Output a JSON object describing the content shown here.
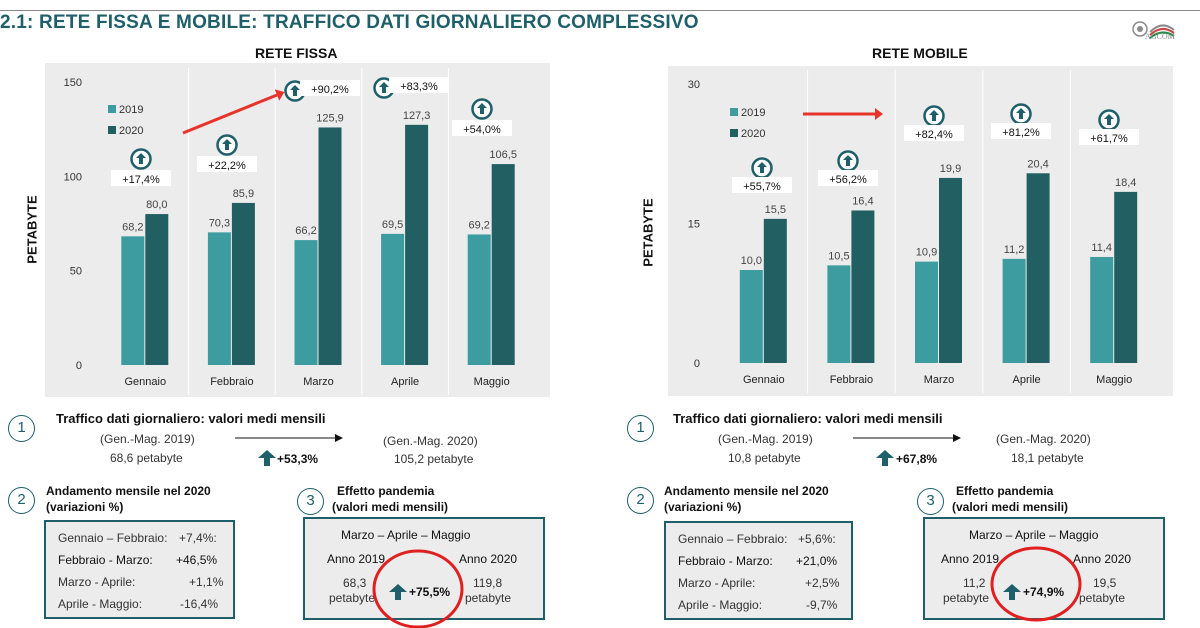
{
  "page_title": "2.1: RETE FISSA E MOBILE: TRAFFICO DATI GIORNALIERO COMPLESSIVO",
  "logo_text": "AGCOM",
  "colors": {
    "c2019": "#3c9ca0",
    "c2020": "#225f63",
    "accent": "#1f5f6a",
    "arrow": "#e8332a",
    "circle": "#e02020"
  },
  "chart_data": [
    {
      "type": "bar",
      "title": "RETE FISSA",
      "ylabel": "PETABYTE",
      "categories": [
        "Gennaio",
        "Febbraio",
        "Marzo",
        "Aprile",
        "Maggio"
      ],
      "ylim": [
        0,
        150
      ],
      "yticks": [
        "0",
        "50",
        "100",
        "150"
      ],
      "series": [
        {
          "name": "2019",
          "values": [
            68.2,
            70.3,
            66.2,
            69.5,
            69.2
          ],
          "labels": [
            "68,2",
            "70,3",
            "66,2",
            "69,5",
            "69,2"
          ]
        },
        {
          "name": "2020",
          "values": [
            80.0,
            85.9,
            125.9,
            127.3,
            106.5
          ],
          "labels": [
            "80,0",
            "85,9",
            "125,9",
            "127,3",
            "106,5"
          ]
        }
      ],
      "annotations": [
        "+17,4%",
        "+22,2%",
        "+90,2%",
        "+83,3%",
        "+54,0%"
      ],
      "legend": "top-left",
      "grid": false
    },
    {
      "type": "bar",
      "title": "RETE MOBILE",
      "ylabel": "PETABYTE",
      "categories": [
        "Gennaio",
        "Febbraio",
        "Marzo",
        "Aprile",
        "Maggio"
      ],
      "ylim": [
        0,
        30
      ],
      "yticks": [
        "0",
        "15",
        "30"
      ],
      "series": [
        {
          "name": "2019",
          "values": [
            10.0,
            10.5,
            10.9,
            11.2,
            11.4
          ],
          "labels": [
            "10,0",
            "10,5",
            "10,9",
            "11,2",
            "11,4"
          ]
        },
        {
          "name": "2020",
          "values": [
            15.5,
            16.4,
            19.9,
            20.4,
            18.4
          ],
          "labels": [
            "15,5",
            "16,4",
            "19,9",
            "20,4",
            "18,4"
          ]
        }
      ],
      "annotations": [
        "+55,7%",
        "+56,2%",
        "+82,4%",
        "+81,2%",
        "+61,7%"
      ],
      "legend": "top-left",
      "grid": false
    }
  ],
  "left": {
    "n1": "1",
    "traffic_title": "Traffico dati giornaliero: valori medi mensili",
    "from_label": "(Gen.-Mag. 2019)",
    "from_value": "68,6 petabyte",
    "to_label": "(Gen.-Mag. 2020)",
    "to_value": "105,2 petabyte",
    "growth": "+53,3%",
    "n2": "2",
    "trend_title": "Andamento mensile nel 2020",
    "trend_sub": "(variazioni %)",
    "trend_rows": [
      {
        "label": "Gennaio – Febbraio:",
        "value": "+7,4%:"
      },
      {
        "label": "Febbraio - Marzo:",
        "value": "+46,5%"
      },
      {
        "label": "Marzo - Aprile:",
        "value": "+1,1%"
      },
      {
        "label": "Aprile - Maggio:",
        "value": "-16,4%"
      }
    ],
    "n3": "3",
    "pandemic_title": "Effetto pandemia",
    "pandemic_sub": "(valori medi mensili)",
    "period": "Marzo – Aprile – Maggio",
    "year_a": "Anno 2019",
    "year_b": "Anno 2020",
    "val_a": "68,3",
    "val_b": "119,8",
    "unit": "petabyte",
    "delta": "+75,5%"
  },
  "right": {
    "n1": "1",
    "traffic_title": "Traffico dati giornaliero: valori medi mensili",
    "from_label": "(Gen.-Mag. 2019)",
    "from_value": "10,8 petabyte",
    "to_label": "(Gen.-Mag. 2020)",
    "to_value": "18,1 petabyte",
    "growth": "+67,8%",
    "n2": "2",
    "trend_title": "Andamento mensile nel 2020",
    "trend_sub": "(variazioni %)",
    "trend_rows": [
      {
        "label": "Gennaio – Febbraio:",
        "value": "+5,6%:"
      },
      {
        "label": "Febbraio - Marzo:",
        "value": "+21,0%"
      },
      {
        "label": "Marzo - Aprile:",
        "value": "+2,5%"
      },
      {
        "label": "Aprile - Maggio:",
        "value": "-9,7%"
      }
    ],
    "n3": "3",
    "pandemic_title": "Effetto pandemia",
    "pandemic_sub": "(valori medi mensili)",
    "period": "Marzo – Aprile – Maggio",
    "year_a": "Anno 2019",
    "year_b": "Anno 2020",
    "val_a": "11,2",
    "val_b": "19,5",
    "unit": "petabyte",
    "delta": "+74,9%"
  }
}
